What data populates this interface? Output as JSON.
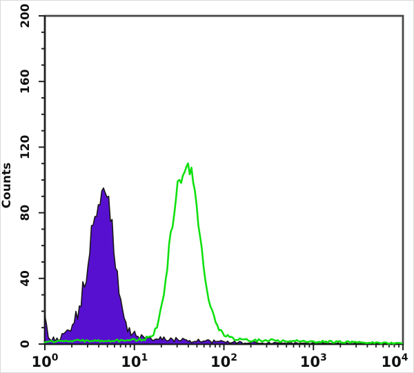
{
  "figure": {
    "background": "#ffffff",
    "frame_color": "#474747",
    "axis_color": "#1f1f1f",
    "text_color": "#101010"
  },
  "chart_data": {
    "type": "area",
    "subtype": "flow-cytometry-histogram-overlay",
    "title": "",
    "xlabel": "",
    "ylabel": "Counts",
    "x_scale": "log10",
    "x_range": [
      1,
      10000
    ],
    "y_range": [
      0,
      200
    ],
    "y_major_ticks": [
      0,
      40,
      80,
      120,
      160,
      200
    ],
    "y_minor_step": 10,
    "x_major_tick_labels": [
      {
        "base": "10",
        "exp": "0"
      },
      {
        "base": "10",
        "exp": "1"
      },
      {
        "base": "10",
        "exp": "2"
      },
      {
        "base": "10",
        "exp": "3"
      },
      {
        "base": "10",
        "exp": "4"
      }
    ],
    "x_minor_ticks_per_decade": [
      2,
      3,
      4,
      5,
      6,
      7,
      8,
      9
    ],
    "grid": "off",
    "legend": "none",
    "series": [
      {
        "name": "negative-control-filled-purple",
        "style": "filled",
        "fill_color": "#5810d0",
        "line_color": "#161616",
        "peak_x": 4.4,
        "peak_counts": 97,
        "points": [
          [
            1.0,
            21
          ],
          [
            1.05,
            9
          ],
          [
            1.1,
            4
          ],
          [
            1.2,
            3
          ],
          [
            1.35,
            3
          ],
          [
            1.5,
            4
          ],
          [
            1.7,
            6
          ],
          [
            1.9,
            9
          ],
          [
            2.1,
            13
          ],
          [
            2.35,
            20
          ],
          [
            2.6,
            30
          ],
          [
            2.9,
            44
          ],
          [
            3.2,
            60
          ],
          [
            3.6,
            77
          ],
          [
            4.0,
            90
          ],
          [
            4.4,
            97
          ],
          [
            4.8,
            92
          ],
          [
            5.2,
            84
          ],
          [
            5.7,
            68
          ],
          [
            6.2,
            50
          ],
          [
            6.8,
            32
          ],
          [
            7.5,
            19
          ],
          [
            8.3,
            11
          ],
          [
            9.2,
            7
          ],
          [
            10.5,
            5
          ],
          [
            12.5,
            4
          ],
          [
            15,
            3
          ],
          [
            20,
            3
          ],
          [
            30,
            2.5
          ],
          [
            45,
            2
          ],
          [
            70,
            1.5
          ],
          [
            100,
            1.2
          ],
          [
            150,
            0.9
          ],
          [
            250,
            0.7
          ],
          [
            400,
            0.5
          ],
          [
            700,
            0.4
          ],
          [
            1500,
            0.3
          ],
          [
            4000,
            0.3
          ],
          [
            10000,
            0.2
          ]
        ]
      },
      {
        "name": "stained-sample-open-green",
        "style": "open",
        "fill_color": "none",
        "line_color": "#0ee00e",
        "peak_x": 38,
        "peak_counts": 110,
        "points": [
          [
            1.0,
            1.5
          ],
          [
            1.5,
            1.8
          ],
          [
            2.2,
            2
          ],
          [
            3.5,
            2
          ],
          [
            5,
            2.2
          ],
          [
            7,
            2
          ],
          [
            9,
            2.2
          ],
          [
            11,
            2.5
          ],
          [
            13,
            3
          ],
          [
            15,
            4.5
          ],
          [
            17,
            8
          ],
          [
            19,
            15
          ],
          [
            21,
            27
          ],
          [
            23,
            44
          ],
          [
            25,
            62
          ],
          [
            27.5,
            80
          ],
          [
            30,
            93
          ],
          [
            33,
            103
          ],
          [
            36,
            109
          ],
          [
            38,
            110
          ],
          [
            41,
            107
          ],
          [
            45,
            99
          ],
          [
            49,
            86
          ],
          [
            54,
            68
          ],
          [
            59,
            50
          ],
          [
            65,
            34
          ],
          [
            72,
            21
          ],
          [
            80,
            13
          ],
          [
            90,
            8
          ],
          [
            100,
            5.5
          ],
          [
            115,
            4
          ],
          [
            135,
            3
          ],
          [
            160,
            2.5
          ],
          [
            200,
            2.2
          ],
          [
            280,
            2.2
          ],
          [
            400,
            2
          ],
          [
            600,
            1.8
          ],
          [
            900,
            1.6
          ],
          [
            1400,
            1.4
          ],
          [
            2200,
            1.2
          ],
          [
            3500,
            1
          ],
          [
            5500,
            0.7
          ],
          [
            8000,
            0.5
          ],
          [
            10000,
            0.4
          ]
        ]
      }
    ]
  }
}
